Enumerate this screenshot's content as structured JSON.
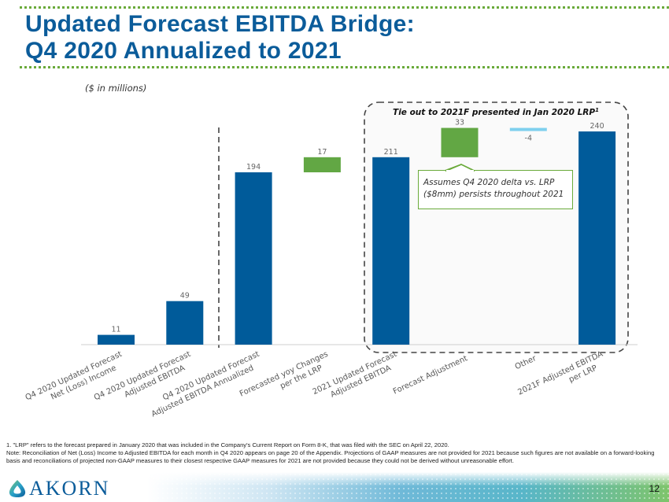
{
  "page": {
    "title_line1": "Updated Forecast EBITDA Bridge:",
    "title_line2": "Q4 2020 Annualized to 2021",
    "units_note": "($ in millions)",
    "page_number": "12",
    "logo_text": "AKORN",
    "colors": {
      "title": "#0b5c9a",
      "accent_green": "#6aaa3a"
    }
  },
  "callouts": {
    "tie_out_label": "Tie out to 2021F presented in Jan 2020 LRP",
    "tie_out_superscript": "1",
    "annotation_line1": "Assumes Q4 2020  delta vs. LRP",
    "annotation_line2": "($8mm) persists throughout 2021"
  },
  "footnotes": {
    "note1": "1.   \"LRP\" refers to the forecast prepared in January 2020 that was included in the Company's Current Report on Form 8-K, that was filed with the SEC on April 22, 2020.",
    "note2": "Note: Reconciliation of Net (Loss) Income to Adjusted EBITDA for each month in Q4 2020 appears on page 20 of the Appendix. Projections of GAAP measures are not provided for 2021 because such figures are not available on a forward-looking basis and reconciliations of projected non-GAAP measures to their closest respective GAAP measures for 2021 are not provided because they could not be derived without unreasonable effort."
  },
  "chart_data": {
    "type": "bar",
    "subtype": "waterfall",
    "title": "Updated Forecast EBITDA Bridge: Q4 2020 Annualized to 2021",
    "ylabel": "($ in millions)",
    "xlabel": "",
    "ylim": [
      0,
      250
    ],
    "grid": false,
    "categories": [
      [
        "Q4 2020 Updated Forecast",
        "Net (Loss) Income"
      ],
      [
        "Q4 2020 Updated Forecast",
        "Adjusted EBITDA"
      ],
      [
        "Q4 2020 Updated Forecast",
        "Adjusted EBITDA Annualized"
      ],
      [
        "Forecasted yoy Changes",
        "per the LRP"
      ],
      [
        "2021 Updated Forecast",
        "Adjusted EBITDA"
      ],
      [
        "Forecast Adjustment"
      ],
      [
        "Other"
      ],
      [
        "2021F Adjusted EBITDA",
        "per LRP"
      ]
    ],
    "values": [
      11,
      49,
      194,
      17,
      211,
      33,
      -4,
      240
    ],
    "labels": [
      "11",
      "49",
      "194",
      "17",
      "211",
      "33",
      "-4",
      "240"
    ],
    "kinds": [
      "total",
      "total",
      "total",
      "delta",
      "total",
      "delta",
      "delta",
      "total"
    ],
    "bases": [
      0,
      0,
      0,
      194,
      0,
      211,
      244,
      0
    ],
    "colors": {
      "total": "#005b9a",
      "increase": "#62a744",
      "decrease": "#7fd0ee"
    }
  }
}
